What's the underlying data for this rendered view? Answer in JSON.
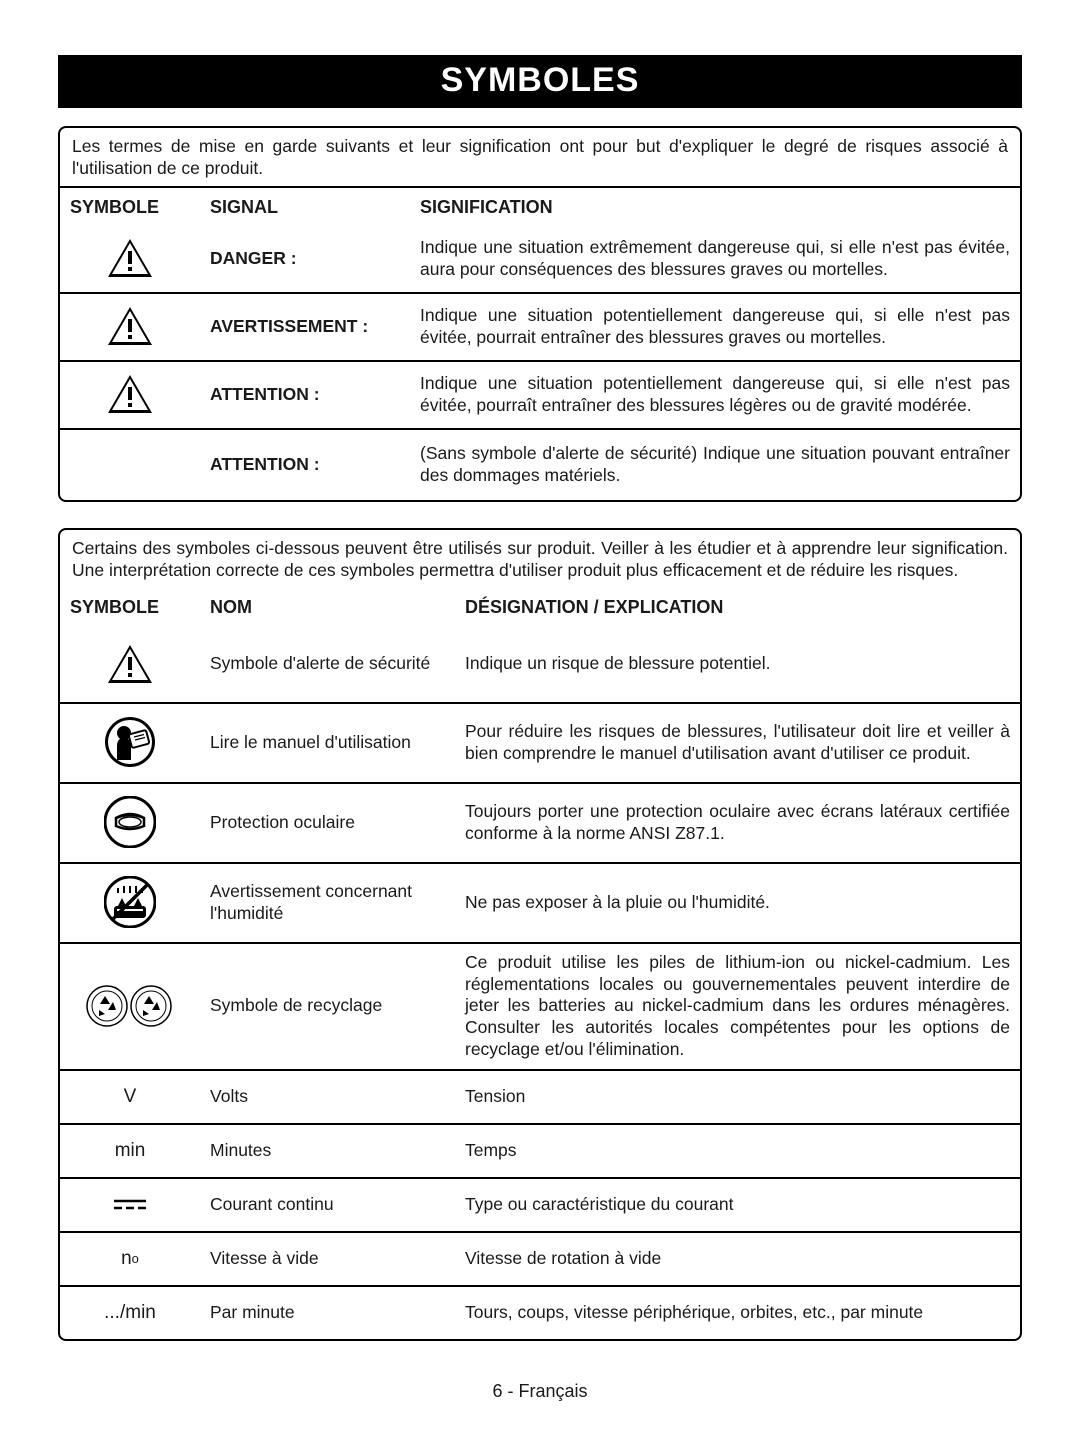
{
  "title": "SYMBOLES",
  "footer": "6 - Français",
  "colors": {
    "page_bg": "#ffffff",
    "text": "#1a1a1a",
    "title_bg": "#000000",
    "title_fg": "#ffffff",
    "border": "#000000"
  },
  "block1": {
    "intro": "Les termes de mise en garde suivants et leur signification ont pour but d'expliquer le degré de risques associé à l'utilisation de ce produit.",
    "headers": {
      "c1": "SYMBOLE",
      "c2": "SIGNAL",
      "c3": "SIGNIFICATION"
    },
    "rows": [
      {
        "icon": "alert-tri",
        "signal": "DANGER :",
        "text": "Indique une situation extrêmement dangereuse qui, si elle n'est pas évitée, aura pour conséquences des blessures graves ou mortelles."
      },
      {
        "icon": "alert-tri",
        "signal": "AVERTISSEMENT :",
        "text": "Indique une situation potentiellement dangereuse qui, si elle n'est pas évitée, pourrait entraîner des blessures graves ou mortelles."
      },
      {
        "icon": "alert-tri",
        "signal": "ATTENTION :",
        "text": "Indique une situation potentiellement dangereuse qui, si elle n'est pas évitée, pourraît entraîner des blessures légères ou de gravité modérée."
      },
      {
        "icon": "",
        "signal": "ATTENTION :",
        "text": "(Sans symbole d'alerte de sécurité) Indique une situation pouvant entraîner des dommages matériels."
      }
    ]
  },
  "block2": {
    "intro": "Certains des symboles ci-dessous peuvent être utilisés sur produit. Veiller à les étudier et à apprendre leur signification. Une interprétation correcte de ces symboles permettra d'utiliser produit plus efficacement et de réduire les risques.",
    "headers": {
      "c1": "SYMBOLE",
      "c2": "NOM",
      "c3": "DÉSIGNATION / EXPLICATION"
    },
    "rows": [
      {
        "icon": "alert-tri",
        "name": "Symbole d'alerte de sécurité",
        "text": "Indique un risque de blessure potentiel."
      },
      {
        "icon": "read-manual",
        "name": "Lire le manuel d'utilisation",
        "text": "Pour réduire les risques de blessures, l'utilisateur doit lire et veiller à bien comprendre le manuel d'utilisation avant d'utiliser ce produit."
      },
      {
        "icon": "eye-protect",
        "name": "Protection oculaire",
        "text": "Toujours porter une protection oculaire avec écrans latéraux certifiée conforme à la norme ANSI Z87.1."
      },
      {
        "icon": "no-wet",
        "name": "Avertissement concernant l'humidité",
        "text": "Ne pas exposer à la pluie ou l'humidité."
      },
      {
        "icon": "recycle",
        "name": "Symbole de recyclage",
        "text": "Ce produit utilise les piles de lithium-ion ou nickel-cadmium. Les réglementations locales ou gouvernementales peuvent interdire de jeter les batteries au nickel-cadmium dans les ordures ménagères. Consulter les autorités locales compétentes pour les options de recyclage et/ou l'élimination."
      },
      {
        "icon": "text:V",
        "name": "Volts",
        "text": "Tension"
      },
      {
        "icon": "text:min",
        "name": "Minutes",
        "text": "Temps"
      },
      {
        "icon": "dc",
        "name": "Courant continu",
        "text": "Type ou caractéristique du courant"
      },
      {
        "icon": "text:n₀",
        "name": "Vitesse à vide",
        "text": "Vitesse de rotation à vide"
      },
      {
        "icon": "text:.../min",
        "name": "Par minute",
        "text": "Tours, coups, vitesse périphérique, orbites, etc., par minute"
      }
    ]
  }
}
